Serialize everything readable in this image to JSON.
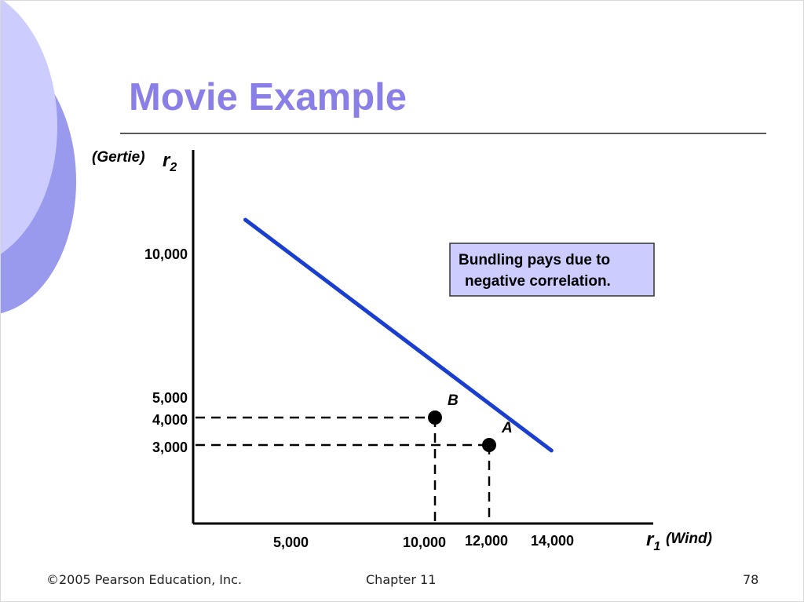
{
  "slide": {
    "title": "Movie Example",
    "footer_left": "©2005 Pearson Education, Inc.",
    "footer_center": "Chapter 11",
    "footer_right": "78",
    "accent_color": "#8a7fe6",
    "line_color": "#1a3fcf"
  },
  "chart_data": {
    "type": "line",
    "ylabel_prefix": "(Gertie)",
    "ylabel": "r2",
    "xlabel": "r1",
    "xlabel_suffix": "(Wind)",
    "y_ticks": [
      "10,000",
      "5,000",
      "4,000",
      "3,000"
    ],
    "x_ticks": [
      "5,000",
      "10,000",
      "12,000",
      "14,000"
    ],
    "series": [
      {
        "x": [
          3000,
          14300
        ],
        "y": [
          11200,
          2800
        ]
      }
    ],
    "points": [
      {
        "label": "B",
        "x": 10000,
        "y": 4000
      },
      {
        "label": "A",
        "x": 12000,
        "y": 3000
      }
    ],
    "annotation": [
      "Bundling pays due to",
      "negative correlation."
    ]
  }
}
